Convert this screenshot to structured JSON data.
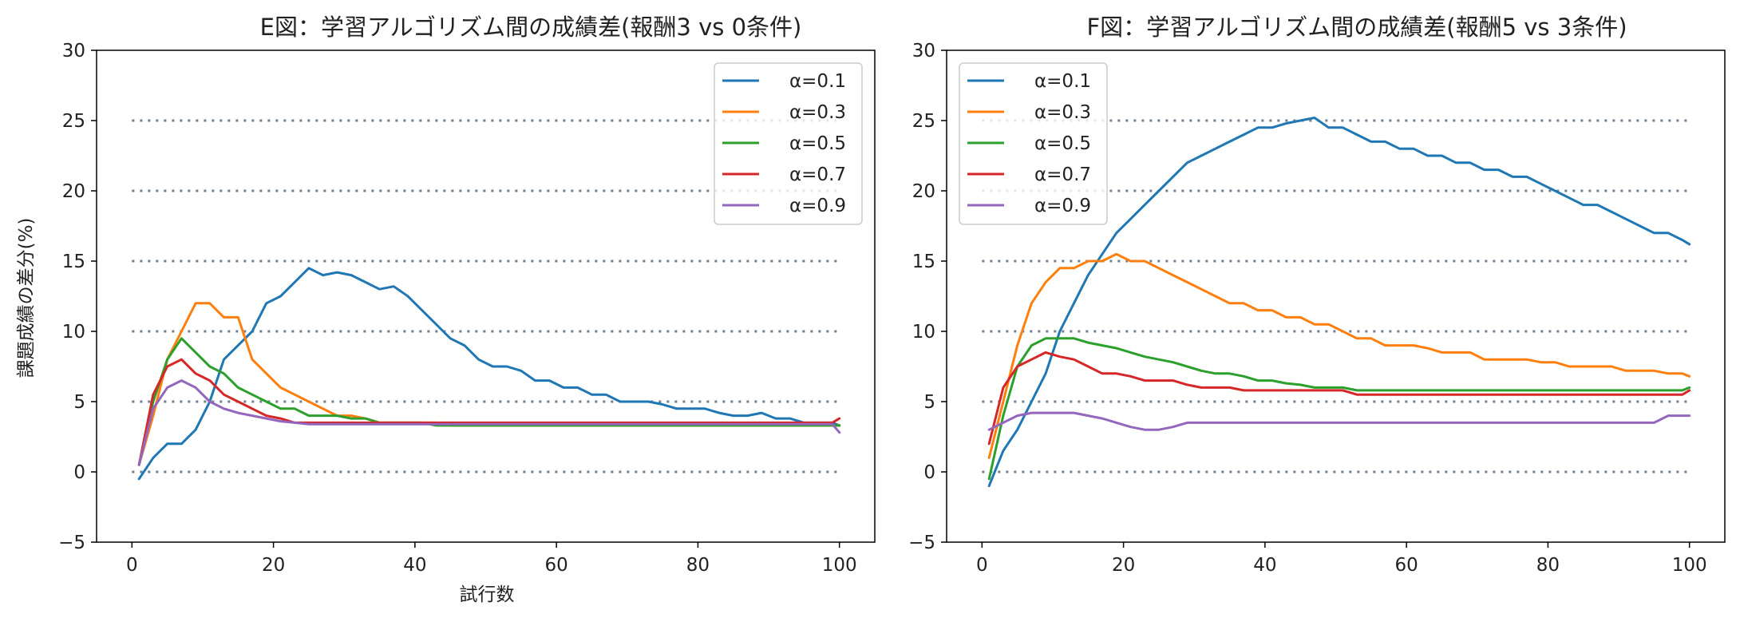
{
  "chart_data": [
    {
      "type": "line",
      "title": "E図：学習アルゴリズム間の成績差(報酬3 vs 0条件)",
      "xlabel": "試行数",
      "ylabel": "課題成績の差分(%)",
      "xlim": [
        -5,
        105
      ],
      "ylim": [
        -5,
        30
      ],
      "xticks": [
        0,
        20,
        40,
        60,
        80,
        100
      ],
      "yticks": [
        -5,
        0,
        5,
        10,
        15,
        20,
        25,
        30
      ],
      "ytick_labels": [
        "−5",
        "0",
        "5",
        "10",
        "15",
        "20",
        "25",
        "30"
      ],
      "reference_lines": [
        0,
        5,
        10,
        15,
        20,
        25
      ],
      "legend_position": "top-right",
      "series": [
        {
          "name": "α=0.1",
          "color": "#1f77b4",
          "x": [
            1,
            3,
            5,
            7,
            9,
            11,
            13,
            15,
            17,
            19,
            21,
            23,
            25,
            27,
            29,
            31,
            33,
            35,
            37,
            39,
            41,
            43,
            45,
            47,
            49,
            51,
            53,
            55,
            57,
            59,
            61,
            63,
            65,
            67,
            69,
            71,
            73,
            75,
            77,
            79,
            81,
            83,
            85,
            87,
            89,
            91,
            93,
            95,
            97,
            99,
            100
          ],
          "y": [
            -0.5,
            1,
            2,
            2,
            3,
            5,
            8,
            9,
            10,
            12,
            12.5,
            13.5,
            14.5,
            14,
            14.2,
            14,
            13.5,
            13,
            13.2,
            12.5,
            11.5,
            10.5,
            9.5,
            9,
            8,
            7.5,
            7.5,
            7.2,
            6.5,
            6.5,
            6,
            6,
            5.5,
            5.5,
            5,
            5,
            5,
            4.8,
            4.5,
            4.5,
            4.5,
            4.2,
            4,
            4,
            4.2,
            3.8,
            3.8,
            3.5,
            3.5,
            3.5,
            3.3
          ]
        },
        {
          "name": "α=0.3",
          "color": "#ff7f0e",
          "x": [
            1,
            3,
            5,
            7,
            9,
            11,
            13,
            15,
            17,
            19,
            21,
            23,
            25,
            27,
            29,
            31,
            33,
            35,
            37,
            39,
            41,
            43,
            45,
            47,
            49,
            51,
            53,
            55,
            57,
            59,
            61,
            63,
            65,
            67,
            69,
            71,
            73,
            75,
            77,
            79,
            81,
            83,
            85,
            87,
            89,
            91,
            93,
            95,
            97,
            99,
            100
          ],
          "y": [
            0.5,
            4,
            8,
            10,
            12,
            12,
            11,
            11,
            8,
            7,
            6,
            5.5,
            5,
            4.5,
            4,
            4,
            3.8,
            3.5,
            3.5,
            3.5,
            3.5,
            3.5,
            3.3,
            3.3,
            3.3,
            3.3,
            3.3,
            3.3,
            3.3,
            3.3,
            3.3,
            3.3,
            3.3,
            3.3,
            3.3,
            3.3,
            3.3,
            3.3,
            3.3,
            3.3,
            3.3,
            3.3,
            3.3,
            3.3,
            3.3,
            3.3,
            3.3,
            3.3,
            3.3,
            3.3,
            3.3
          ]
        },
        {
          "name": "α=0.5",
          "color": "#2ca02c",
          "x": [
            1,
            3,
            5,
            7,
            9,
            11,
            13,
            15,
            17,
            19,
            21,
            23,
            25,
            27,
            29,
            31,
            33,
            35,
            37,
            39,
            41,
            43,
            45,
            47,
            49,
            51,
            53,
            55,
            57,
            59,
            61,
            63,
            65,
            67,
            69,
            71,
            73,
            75,
            77,
            79,
            81,
            83,
            85,
            87,
            89,
            91,
            93,
            95,
            97,
            99,
            100
          ],
          "y": [
            0.5,
            5,
            8,
            9.5,
            8.5,
            7.5,
            7,
            6,
            5.5,
            5,
            4.5,
            4.5,
            4,
            4,
            4,
            3.8,
            3.8,
            3.5,
            3.5,
            3.5,
            3.5,
            3.3,
            3.3,
            3.3,
            3.3,
            3.3,
            3.3,
            3.3,
            3.3,
            3.3,
            3.3,
            3.3,
            3.3,
            3.3,
            3.3,
            3.3,
            3.3,
            3.3,
            3.3,
            3.3,
            3.3,
            3.3,
            3.3,
            3.3,
            3.3,
            3.3,
            3.3,
            3.3,
            3.3,
            3.3,
            3.3
          ]
        },
        {
          "name": "α=0.7",
          "color": "#d62728",
          "x": [
            1,
            3,
            5,
            7,
            9,
            11,
            13,
            15,
            17,
            19,
            21,
            23,
            25,
            27,
            29,
            31,
            33,
            35,
            37,
            39,
            41,
            43,
            45,
            47,
            49,
            51,
            53,
            55,
            57,
            59,
            61,
            63,
            65,
            67,
            69,
            71,
            73,
            75,
            77,
            79,
            81,
            83,
            85,
            87,
            89,
            91,
            93,
            95,
            97,
            99,
            100
          ],
          "y": [
            0.5,
            5.5,
            7.5,
            8,
            7,
            6.5,
            5.5,
            5,
            4.5,
            4,
            3.8,
            3.5,
            3.5,
            3.5,
            3.5,
            3.5,
            3.5,
            3.5,
            3.5,
            3.5,
            3.5,
            3.5,
            3.5,
            3.5,
            3.5,
            3.5,
            3.5,
            3.5,
            3.5,
            3.5,
            3.5,
            3.5,
            3.5,
            3.5,
            3.5,
            3.5,
            3.5,
            3.5,
            3.5,
            3.5,
            3.5,
            3.5,
            3.5,
            3.5,
            3.5,
            3.5,
            3.5,
            3.5,
            3.5,
            3.5,
            3.8
          ]
        },
        {
          "name": "α=0.9",
          "color": "#9467bd",
          "x": [
            1,
            3,
            5,
            7,
            9,
            11,
            13,
            15,
            17,
            19,
            21,
            23,
            25,
            27,
            29,
            31,
            33,
            35,
            37,
            39,
            41,
            43,
            45,
            47,
            49,
            51,
            53,
            55,
            57,
            59,
            61,
            63,
            65,
            67,
            69,
            71,
            73,
            75,
            77,
            79,
            81,
            83,
            85,
            87,
            89,
            91,
            93,
            95,
            97,
            99,
            100
          ],
          "y": [
            0.5,
            4.5,
            6,
            6.5,
            6,
            5,
            4.5,
            4.2,
            4,
            3.8,
            3.6,
            3.5,
            3.4,
            3.4,
            3.4,
            3.4,
            3.4,
            3.4,
            3.4,
            3.4,
            3.4,
            3.4,
            3.4,
            3.4,
            3.4,
            3.4,
            3.4,
            3.4,
            3.4,
            3.4,
            3.4,
            3.4,
            3.4,
            3.4,
            3.4,
            3.4,
            3.4,
            3.4,
            3.4,
            3.4,
            3.4,
            3.4,
            3.4,
            3.4,
            3.4,
            3.4,
            3.4,
            3.4,
            3.4,
            3.4,
            2.8
          ]
        }
      ]
    },
    {
      "type": "line",
      "title": "F図：学習アルゴリズム間の成績差(報酬5 vs 3条件)",
      "xlabel": "",
      "ylabel": "",
      "xlim": [
        -5,
        105
      ],
      "ylim": [
        -5,
        30
      ],
      "xticks": [
        0,
        20,
        40,
        60,
        80,
        100
      ],
      "yticks": [
        -5,
        0,
        5,
        10,
        15,
        20,
        25,
        30
      ],
      "ytick_labels": [
        "−5",
        "0",
        "5",
        "10",
        "15",
        "20",
        "25",
        "30"
      ],
      "reference_lines": [
        0,
        5,
        10,
        15,
        20,
        25
      ],
      "legend_position": "top-left",
      "series": [
        {
          "name": "α=0.1",
          "color": "#1f77b4",
          "x": [
            1,
            3,
            5,
            7,
            9,
            11,
            13,
            15,
            17,
            19,
            21,
            23,
            25,
            27,
            29,
            31,
            33,
            35,
            37,
            39,
            41,
            43,
            45,
            47,
            49,
            51,
            53,
            55,
            57,
            59,
            61,
            63,
            65,
            67,
            69,
            71,
            73,
            75,
            77,
            79,
            81,
            83,
            85,
            87,
            89,
            91,
            93,
            95,
            97,
            99,
            100
          ],
          "y": [
            -1,
            1.5,
            3,
            5,
            7,
            10,
            12,
            14,
            15.5,
            17,
            18,
            19,
            20,
            21,
            22,
            22.5,
            23,
            23.5,
            24,
            24.5,
            24.5,
            24.8,
            25,
            25.2,
            24.5,
            24.5,
            24,
            23.5,
            23.5,
            23,
            23,
            22.5,
            22.5,
            22,
            22,
            21.5,
            21.5,
            21,
            21,
            20.5,
            20,
            19.5,
            19,
            19,
            18.5,
            18,
            17.5,
            17,
            17,
            16.5,
            16.2
          ]
        },
        {
          "name": "α=0.3",
          "color": "#ff7f0e",
          "x": [
            1,
            3,
            5,
            7,
            9,
            11,
            13,
            15,
            17,
            19,
            21,
            23,
            25,
            27,
            29,
            31,
            33,
            35,
            37,
            39,
            41,
            43,
            45,
            47,
            49,
            51,
            53,
            55,
            57,
            59,
            61,
            63,
            65,
            67,
            69,
            71,
            73,
            75,
            77,
            79,
            81,
            83,
            85,
            87,
            89,
            91,
            93,
            95,
            97,
            99,
            100
          ],
          "y": [
            1,
            5,
            9,
            12,
            13.5,
            14.5,
            14.5,
            15,
            15,
            15.5,
            15,
            15,
            14.5,
            14,
            13.5,
            13,
            12.5,
            12,
            12,
            11.5,
            11.5,
            11,
            11,
            10.5,
            10.5,
            10,
            9.5,
            9.5,
            9,
            9,
            9,
            8.8,
            8.5,
            8.5,
            8.5,
            8,
            8,
            8,
            8,
            7.8,
            7.8,
            7.5,
            7.5,
            7.5,
            7.5,
            7.2,
            7.2,
            7.2,
            7,
            7,
            6.8
          ]
        },
        {
          "name": "α=0.5",
          "color": "#2ca02c",
          "x": [
            1,
            3,
            5,
            7,
            9,
            11,
            13,
            15,
            17,
            19,
            21,
            23,
            25,
            27,
            29,
            31,
            33,
            35,
            37,
            39,
            41,
            43,
            45,
            47,
            49,
            51,
            53,
            55,
            57,
            59,
            61,
            63,
            65,
            67,
            69,
            71,
            73,
            75,
            77,
            79,
            81,
            83,
            85,
            87,
            89,
            91,
            93,
            95,
            97,
            99,
            100
          ],
          "y": [
            -0.5,
            4,
            7.5,
            9,
            9.5,
            9.5,
            9.5,
            9.2,
            9,
            8.8,
            8.5,
            8.2,
            8,
            7.8,
            7.5,
            7.2,
            7,
            7,
            6.8,
            6.5,
            6.5,
            6.3,
            6.2,
            6,
            6,
            6,
            5.8,
            5.8,
            5.8,
            5.8,
            5.8,
            5.8,
            5.8,
            5.8,
            5.8,
            5.8,
            5.8,
            5.8,
            5.8,
            5.8,
            5.8,
            5.8,
            5.8,
            5.8,
            5.8,
            5.8,
            5.8,
            5.8,
            5.8,
            5.8,
            6
          ]
        },
        {
          "name": "α=0.7",
          "color": "#d62728",
          "x": [
            1,
            3,
            5,
            7,
            9,
            11,
            13,
            15,
            17,
            19,
            21,
            23,
            25,
            27,
            29,
            31,
            33,
            35,
            37,
            39,
            41,
            43,
            45,
            47,
            49,
            51,
            53,
            55,
            57,
            59,
            61,
            63,
            65,
            67,
            69,
            71,
            73,
            75,
            77,
            79,
            81,
            83,
            85,
            87,
            89,
            91,
            93,
            95,
            97,
            99,
            100
          ],
          "y": [
            2,
            6,
            7.5,
            8,
            8.5,
            8.2,
            8,
            7.5,
            7,
            7,
            6.8,
            6.5,
            6.5,
            6.5,
            6.2,
            6,
            6,
            6,
            5.8,
            5.8,
            5.8,
            5.8,
            5.8,
            5.8,
            5.8,
            5.8,
            5.5,
            5.5,
            5.5,
            5.5,
            5.5,
            5.5,
            5.5,
            5.5,
            5.5,
            5.5,
            5.5,
            5.5,
            5.5,
            5.5,
            5.5,
            5.5,
            5.5,
            5.5,
            5.5,
            5.5,
            5.5,
            5.5,
            5.5,
            5.5,
            5.8
          ]
        },
        {
          "name": "α=0.9",
          "color": "#9467bd",
          "x": [
            1,
            3,
            5,
            7,
            9,
            11,
            13,
            15,
            17,
            19,
            21,
            23,
            25,
            27,
            29,
            31,
            33,
            35,
            37,
            39,
            41,
            43,
            45,
            47,
            49,
            51,
            53,
            55,
            57,
            59,
            61,
            63,
            65,
            67,
            69,
            71,
            73,
            75,
            77,
            79,
            81,
            83,
            85,
            87,
            89,
            91,
            93,
            95,
            97,
            99,
            100
          ],
          "y": [
            3,
            3.5,
            4,
            4.2,
            4.2,
            4.2,
            4.2,
            4,
            3.8,
            3.5,
            3.2,
            3,
            3,
            3.2,
            3.5,
            3.5,
            3.5,
            3.5,
            3.5,
            3.5,
            3.5,
            3.5,
            3.5,
            3.5,
            3.5,
            3.5,
            3.5,
            3.5,
            3.5,
            3.5,
            3.5,
            3.5,
            3.5,
            3.5,
            3.5,
            3.5,
            3.5,
            3.5,
            3.5,
            3.5,
            3.5,
            3.5,
            3.5,
            3.5,
            3.5,
            3.5,
            3.5,
            3.5,
            4,
            4,
            4
          ]
        }
      ]
    }
  ]
}
